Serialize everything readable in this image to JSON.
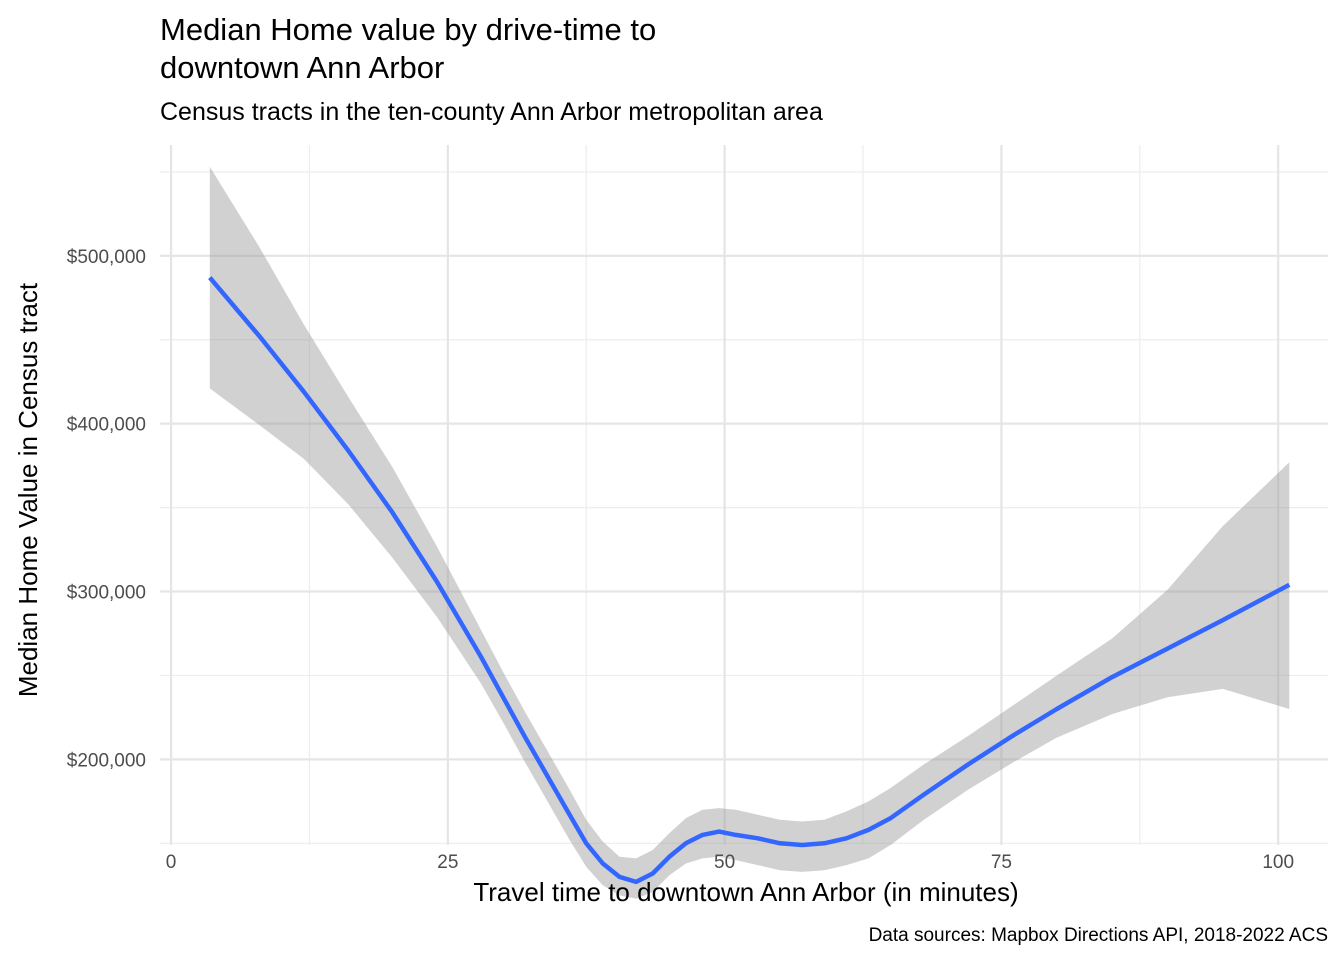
{
  "chart_data": {
    "type": "line",
    "title_lines": [
      "Median Home value by drive-time to",
      "downtown Ann Arbor"
    ],
    "subtitle": "Census tracts in the ten-county Ann Arbor metropolitan area",
    "xlabel": "Travel time to downtown Ann Arbor (in minutes)",
    "ylabel": "Median Home Value in Census tract",
    "caption": "Data sources: Mapbox Directions API, 2018-2022 ACS",
    "x_ticks": [
      0,
      25,
      50,
      75,
      100
    ],
    "x_tick_labels": [
      "0",
      "25",
      "50",
      "75",
      "100"
    ],
    "y_ticks": [
      200000,
      300000,
      400000,
      500000
    ],
    "y_tick_labels": [
      "$200,000",
      "$300,000",
      "$400,000",
      "$500,000"
    ],
    "xlim": [
      -1,
      104.5
    ],
    "ylim": [
      149000,
      566000
    ],
    "grid": true,
    "colors": {
      "line": "#3366ff",
      "ribbon": "#999999"
    },
    "series": [
      {
        "x": [
          3.5,
          8,
          12,
          16,
          20,
          24,
          28,
          30,
          32,
          34,
          36,
          37.5,
          39,
          40.5,
          42,
          43.5,
          45,
          46.5,
          48,
          49.5,
          51,
          53,
          55,
          57,
          59,
          61,
          63,
          65,
          68,
          72,
          76,
          80,
          85,
          90,
          95,
          101
        ],
        "y": [
          487000,
          452000,
          419000,
          384000,
          347000,
          306000,
          261000,
          237000,
          213000,
          190000,
          167000,
          150000,
          138000,
          130000,
          127000,
          132000,
          142000,
          150000,
          155000,
          157000,
          155000,
          153000,
          150000,
          149000,
          150000,
          153000,
          158000,
          165000,
          179000,
          197000,
          214000,
          230000,
          249000,
          266000,
          283000,
          304000
        ],
        "lower": [
          421000,
          399000,
          379000,
          352000,
          320000,
          285000,
          245000,
          222000,
          198000,
          175000,
          152000,
          136000,
          125000,
          119000,
          117000,
          121000,
          131000,
          138000,
          141000,
          142000,
          140000,
          137000,
          134000,
          133000,
          134000,
          137000,
          141000,
          149000,
          164000,
          182000,
          198000,
          213000,
          227000,
          237000,
          242000,
          230000
        ],
        "upper": [
          553000,
          505000,
          459000,
          416000,
          374000,
          327000,
          277000,
          252000,
          228000,
          205000,
          182000,
          164000,
          151000,
          142000,
          141000,
          146000,
          156000,
          165000,
          170000,
          171000,
          170000,
          167000,
          164000,
          163000,
          164000,
          169000,
          175000,
          183000,
          197000,
          214000,
          232000,
          250000,
          272000,
          301000,
          339000,
          377000
        ]
      }
    ]
  }
}
